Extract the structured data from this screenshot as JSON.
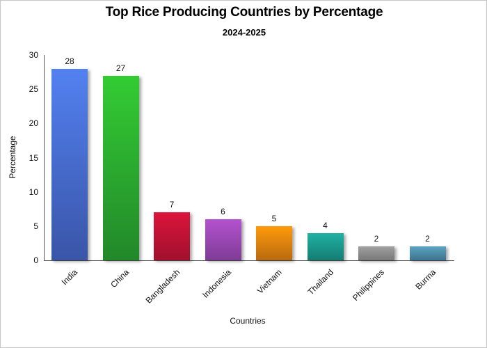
{
  "chart_data": {
    "type": "bar",
    "title": "Top Rice Producing Countries by Percentage",
    "subtitle": "2024-2025",
    "xlabel": "Countries",
    "ylabel": "Percentage",
    "ylim": [
      0,
      30
    ],
    "yticks": [
      "0",
      "5",
      "10",
      "15",
      "20",
      "25",
      "30"
    ],
    "grid": false,
    "legend": null,
    "categories": [
      "India",
      "China",
      "Bangladesh",
      "Indonesia",
      "Vietnam",
      "Thailand",
      "Philippines",
      "Burma"
    ],
    "values": [
      28,
      27,
      7,
      6,
      5,
      4,
      2,
      2
    ],
    "data_labels": [
      "28",
      "27",
      "7",
      "6",
      "5",
      "4",
      "2",
      "2"
    ],
    "colors": [
      {
        "top": "#5281f0",
        "bottom": "#3a55a8"
      },
      {
        "top": "#33cc33",
        "bottom": "#22882a"
      },
      {
        "top": "#dc143c",
        "bottom": "#a0102c"
      },
      {
        "top": "#b452d0",
        "bottom": "#7e3c96"
      },
      {
        "top": "#ff9a0a",
        "bottom": "#b86a10"
      },
      {
        "top": "#20b2a4",
        "bottom": "#157c72"
      },
      {
        "top": "#a0a0a0",
        "bottom": "#787878"
      },
      {
        "top": "#5ba4c0",
        "bottom": "#3d7290"
      }
    ]
  }
}
